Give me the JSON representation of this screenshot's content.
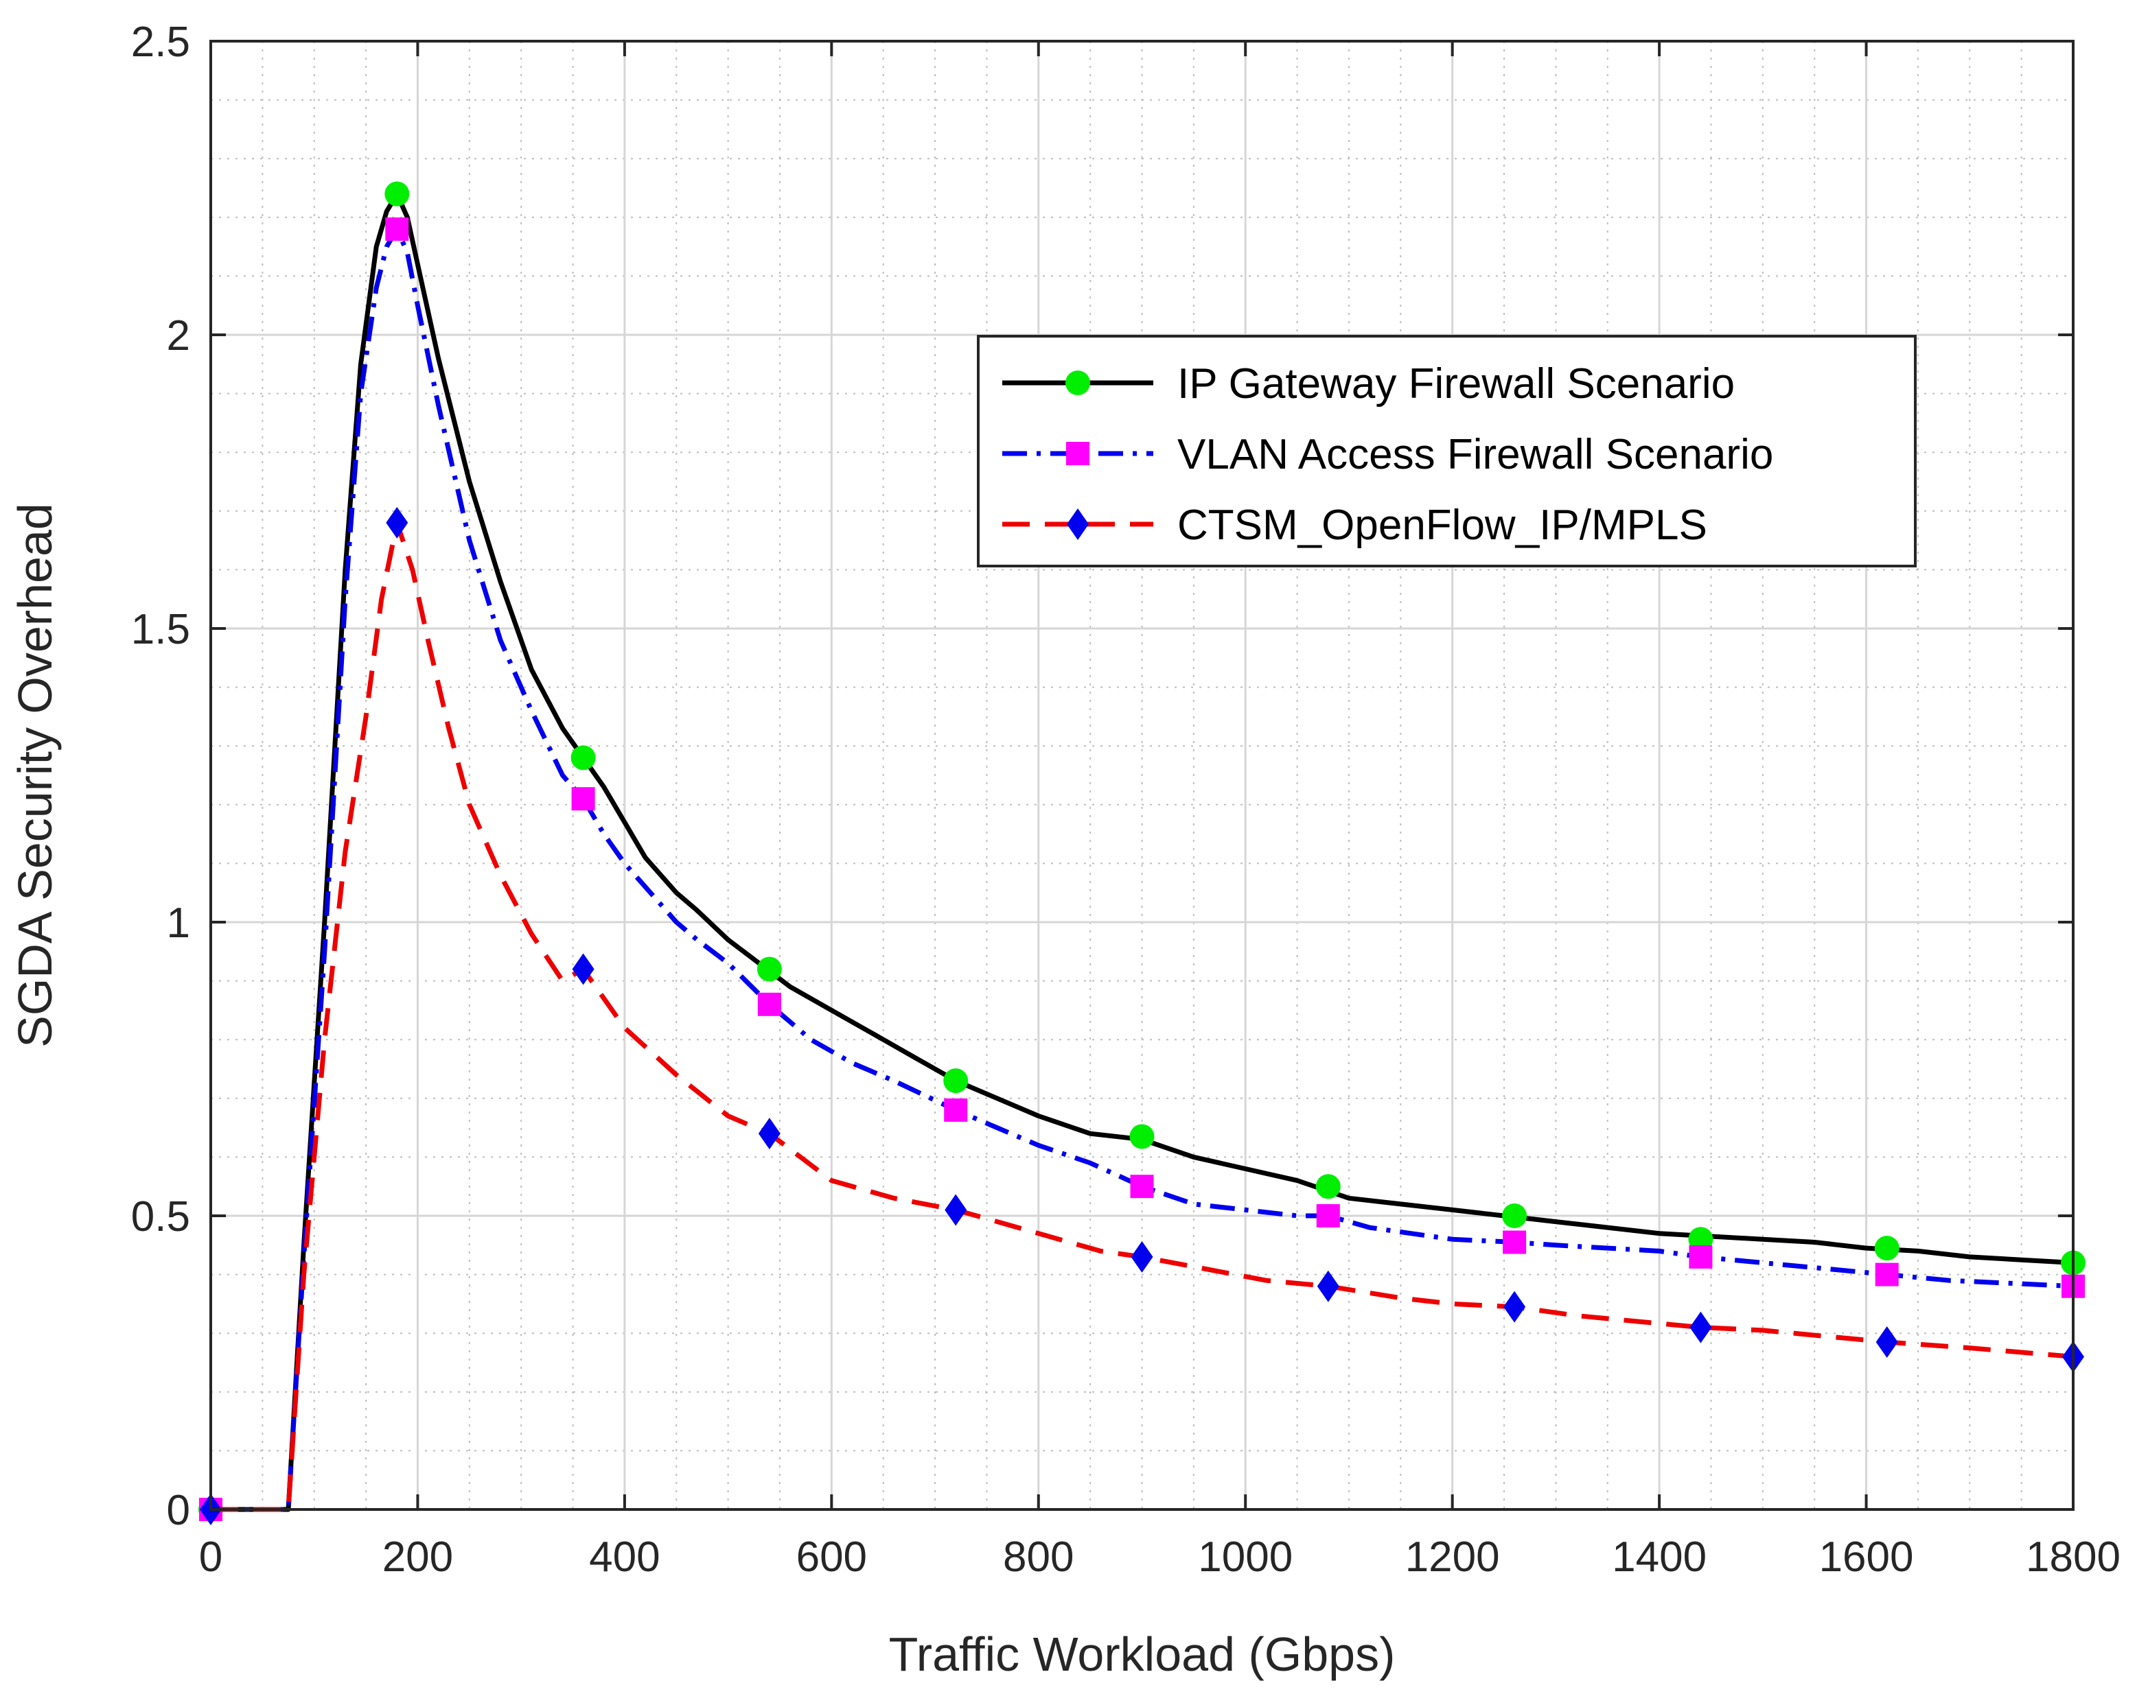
{
  "chart_data": {
    "type": "line",
    "title": "",
    "xlabel": "Traffic Workload (Gbps)",
    "ylabel": "SGDA Security Overhead",
    "xlim": [
      0,
      1800
    ],
    "ylim": [
      0,
      2.5
    ],
    "xticks": [
      0,
      200,
      400,
      600,
      800,
      1000,
      1200,
      1400,
      1600,
      1800
    ],
    "xtick_labels": [
      "0",
      "200",
      "400",
      "600",
      "800",
      "1000",
      "1200",
      "1400",
      "1600",
      "1800"
    ],
    "yticks": [
      0,
      0.5,
      1,
      1.5,
      2,
      2.5
    ],
    "ytick_labels": [
      "0",
      "0.5",
      "1",
      "1.5",
      "2",
      "2.5"
    ],
    "grid": true,
    "minor_grid": true,
    "legend_position": "upper-right",
    "series": [
      {
        "name": "IP Gateway Firewall Scenario",
        "color": "#000000",
        "line_style": "solid",
        "marker": "circle",
        "marker_color": "#00ee00",
        "x": [
          0,
          75,
          90,
          110,
          130,
          145,
          160,
          170,
          180,
          190,
          200,
          220,
          250,
          280,
          310,
          340,
          360,
          380,
          400,
          420,
          450,
          470,
          500,
          530,
          560,
          600,
          640,
          680,
          720,
          760,
          800,
          850,
          900,
          950,
          1000,
          1050,
          1100,
          1150,
          1200,
          1250,
          1300,
          1350,
          1400,
          1450,
          1500,
          1550,
          1600,
          1650,
          1700,
          1750,
          1800
        ],
        "y": [
          0,
          0,
          0.45,
          1.0,
          1.6,
          1.95,
          2.15,
          2.21,
          2.24,
          2.2,
          2.12,
          1.96,
          1.75,
          1.58,
          1.43,
          1.33,
          1.28,
          1.23,
          1.17,
          1.11,
          1.05,
          1.02,
          0.97,
          0.93,
          0.89,
          0.85,
          0.81,
          0.77,
          0.73,
          0.7,
          0.67,
          0.64,
          0.63,
          0.6,
          0.58,
          0.56,
          0.53,
          0.52,
          0.51,
          0.5,
          0.49,
          0.48,
          0.47,
          0.465,
          0.46,
          0.455,
          0.445,
          0.44,
          0.43,
          0.425,
          0.42
        ],
        "marker_x": [
          0,
          180,
          360,
          540,
          720,
          900,
          1080,
          1260,
          1440,
          1620,
          1800
        ],
        "marker_y": [
          0,
          2.24,
          1.28,
          0.92,
          0.73,
          0.635,
          0.55,
          0.5,
          0.46,
          0.445,
          0.42
        ]
      },
      {
        "name": "VLAN Access Firewall Scenario",
        "color": "#0000ee",
        "line_style": "dashdot",
        "marker": "square",
        "marker_color": "#ff00ff",
        "x": [
          0,
          75,
          90,
          110,
          130,
          145,
          160,
          170,
          180,
          190,
          200,
          220,
          250,
          280,
          310,
          340,
          360,
          380,
          400,
          420,
          450,
          470,
          500,
          540,
          580,
          620,
          660,
          720,
          760,
          800,
          850,
          900,
          950,
          1000,
          1050,
          1080,
          1120,
          1160,
          1200,
          1260,
          1300,
          1350,
          1400,
          1440,
          1500,
          1560,
          1620,
          1680,
          1740,
          1800
        ],
        "y": [
          0,
          0,
          0.43,
          0.95,
          1.55,
          1.9,
          2.08,
          2.15,
          2.18,
          2.14,
          2.05,
          1.88,
          1.65,
          1.48,
          1.36,
          1.25,
          1.21,
          1.15,
          1.1,
          1.06,
          1.0,
          0.97,
          0.93,
          0.86,
          0.8,
          0.76,
          0.73,
          0.68,
          0.65,
          0.62,
          0.59,
          0.55,
          0.52,
          0.51,
          0.5,
          0.5,
          0.48,
          0.47,
          0.46,
          0.455,
          0.45,
          0.445,
          0.44,
          0.43,
          0.42,
          0.41,
          0.4,
          0.39,
          0.385,
          0.38
        ],
        "marker_x": [
          0,
          180,
          360,
          540,
          720,
          900,
          1080,
          1260,
          1440,
          1620,
          1800
        ],
        "marker_y": [
          0,
          2.18,
          1.21,
          0.86,
          0.68,
          0.55,
          0.5,
          0.455,
          0.43,
          0.4,
          0.38
        ]
      },
      {
        "name": "CTSM_OpenFlow_IP/MPLS",
        "color": "#ee0000",
        "line_style": "dashed",
        "marker": "diamond",
        "marker_color": "#0000ee",
        "x": [
          0,
          75,
          90,
          110,
          130,
          150,
          165,
          180,
          195,
          210,
          230,
          250,
          280,
          310,
          340,
          360,
          400,
          450,
          500,
          540,
          600,
          660,
          720,
          800,
          860,
          900,
          960,
          1020,
          1080,
          1150,
          1200,
          1260,
          1320,
          1380,
          1440,
          1500,
          1560,
          1620,
          1700,
          1800
        ],
        "y": [
          0,
          0,
          0.4,
          0.8,
          1.12,
          1.35,
          1.55,
          1.68,
          1.6,
          1.48,
          1.33,
          1.2,
          1.08,
          0.98,
          0.9,
          0.92,
          0.82,
          0.74,
          0.67,
          0.64,
          0.56,
          0.53,
          0.51,
          0.47,
          0.44,
          0.43,
          0.41,
          0.39,
          0.38,
          0.36,
          0.35,
          0.345,
          0.33,
          0.32,
          0.31,
          0.305,
          0.295,
          0.285,
          0.275,
          0.26
        ],
        "marker_x": [
          0,
          180,
          360,
          540,
          720,
          900,
          1080,
          1260,
          1440,
          1620,
          1800
        ],
        "marker_y": [
          0,
          1.68,
          0.92,
          0.64,
          0.51,
          0.43,
          0.38,
          0.345,
          0.31,
          0.285,
          0.26
        ]
      }
    ]
  }
}
